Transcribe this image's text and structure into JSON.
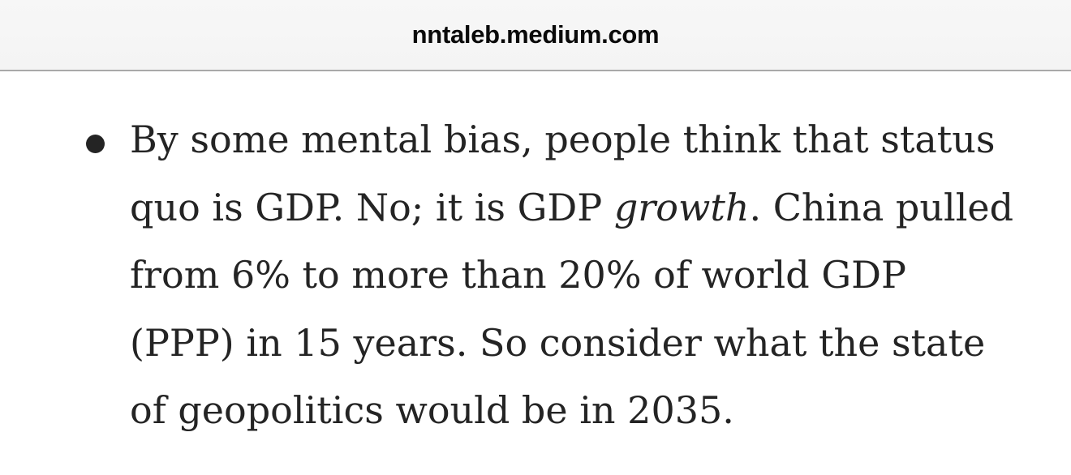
{
  "browser": {
    "url_label": "nntaleb.medium.com"
  },
  "article": {
    "bullet_item": {
      "full_text": "By some mental bias, people think that status quo is GDP. No; it is GDP growth. China pulled from 6% to more than 20% of world GDP (PPP) in 15 years. So consider what the state of geopolitics would be in 2035.",
      "lines": [
        {
          "segments": [
            {
              "text": "By some mental bias, people think that status",
              "italic": false
            }
          ]
        },
        {
          "segments": [
            {
              "text": "quo is GDP. No; it is GDP ",
              "italic": false
            },
            {
              "text": "growth",
              "italic": true
            },
            {
              "text": ". China pulled",
              "italic": false
            }
          ]
        },
        {
          "segments": [
            {
              "text": "from 6% to more than 20% of world GDP",
              "italic": false
            }
          ]
        },
        {
          "segments": [
            {
              "text": "(PPP) in 15 years. So consider what the state",
              "italic": false
            }
          ]
        },
        {
          "segments": [
            {
              "text": "of geopolitics would be in 2035.",
              "italic": false
            }
          ]
        }
      ]
    }
  },
  "colors": {
    "topbar_background": "#f6f6f6",
    "topbar_divider": "#a9a9a9",
    "url_text": "#0a0a0a",
    "body_text": "#242424",
    "page_background": "#ffffff"
  }
}
